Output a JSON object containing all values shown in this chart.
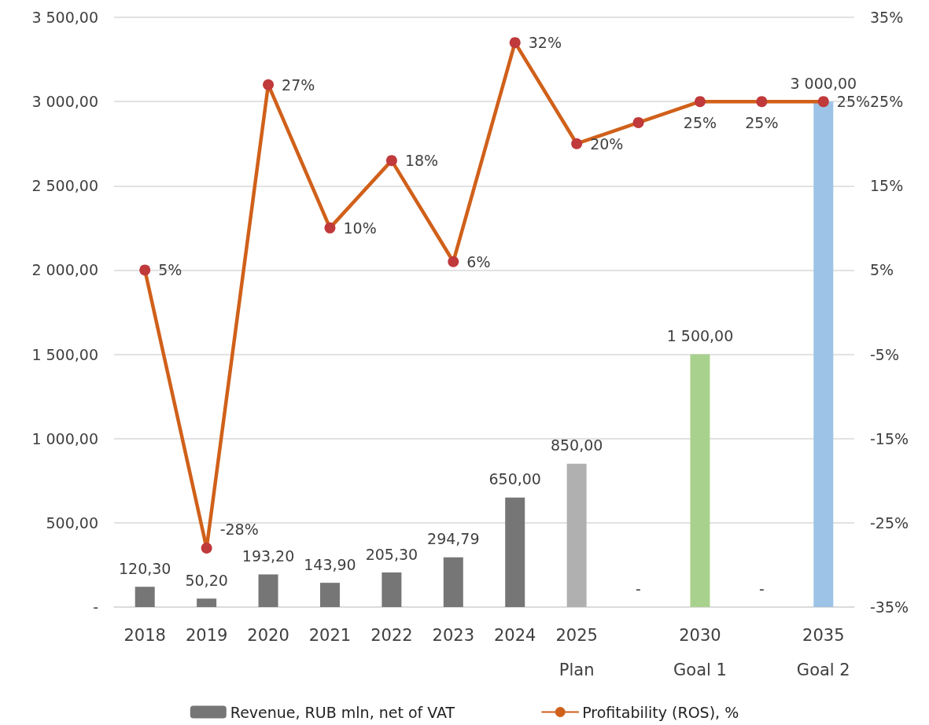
{
  "chart_data": {
    "type": "bar",
    "categories": [
      "2018",
      "2019",
      "2020",
      "2021",
      "2022",
      "2023",
      "2024",
      "2025\nPlan",
      null,
      "2030\nGoal 1",
      null,
      "2035\nGoal 2"
    ],
    "series": [
      {
        "name": "Revenue, RUB mln, net of VAT",
        "color": "#767676",
        "colors": [
          "#767676",
          "#767676",
          "#767676",
          "#767676",
          "#767676",
          "#767676",
          "#767676",
          "#b0b0b0",
          "#767676",
          "#a9d18e",
          "#767676",
          "#9dc3e6"
        ],
        "values": [
          120.3,
          50.2,
          193.2,
          143.9,
          205.3,
          294.79,
          650.0,
          850.0,
          0,
          1500.0,
          0,
          3000.0
        ],
        "value_labels": [
          "120,30",
          "50,20",
          "193,20",
          "143,90",
          "205,30",
          "294,79",
          "650,00",
          "850,00",
          "-",
          "1 500,00",
          "-",
          "3 000,00"
        ]
      },
      {
        "name": "Profitability (ROS), %",
        "type": "line",
        "axis": "y2",
        "color": "#d0601a",
        "marker": "circle",
        "values": [
          5,
          -28,
          27,
          10,
          18,
          6,
          32,
          20,
          22.5,
          25,
          25,
          25
        ],
        "value_labels": [
          "5%",
          "-28%",
          "27%",
          "10%",
          "18%",
          "6%",
          "32%",
          "20%",
          null,
          "25%",
          "25%",
          "25%"
        ]
      }
    ],
    "ylim": [
      0,
      3500
    ],
    "yticks": [
      {
        "value": 0,
        "label": "-"
      },
      {
        "value": 500,
        "label": "500,00"
      },
      {
        "value": 1000,
        "label": "1 000,00"
      },
      {
        "value": 1500,
        "label": "1 500,00"
      },
      {
        "value": 2000,
        "label": "2 000,00"
      },
      {
        "value": 2500,
        "label": "2 500,00"
      },
      {
        "value": 3000,
        "label": "3 000,00"
      },
      {
        "value": 3500,
        "label": "3 500,00"
      }
    ],
    "y2lim": [
      -35,
      35
    ],
    "y2ticks": [
      {
        "value": -35,
        "label": "-35%"
      },
      {
        "value": -25,
        "label": "-25%"
      },
      {
        "value": -15,
        "label": "-15%"
      },
      {
        "value": -5,
        "label": "-5%"
      },
      {
        "value": 5,
        "label": "5%"
      },
      {
        "value": 15,
        "label": "15%"
      },
      {
        "value": 25,
        "label": "25%"
      },
      {
        "value": 35,
        "label": "35%"
      }
    ],
    "grid": "y",
    "legend": "bottom"
  }
}
